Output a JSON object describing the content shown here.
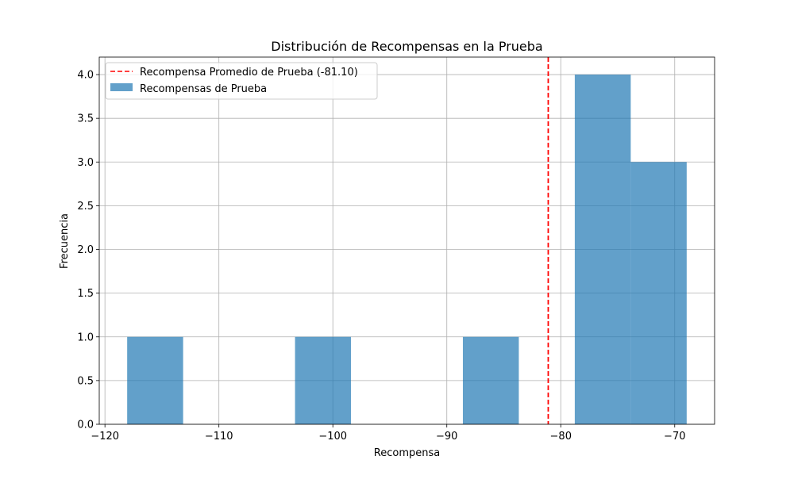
{
  "chart_data": {
    "type": "bar",
    "title": "Distribución de Recompensas en la Prueba",
    "xlabel": "Recompensa",
    "ylabel": "Frecuencia",
    "xlim": [
      -120.5,
      -66.5
    ],
    "ylim": [
      0,
      4.2
    ],
    "grid": true,
    "legend_position": "top-left",
    "x_ticks": [
      {
        "value": -120,
        "label": "−120"
      },
      {
        "value": -110,
        "label": "−110"
      },
      {
        "value": -100,
        "label": "−100"
      },
      {
        "value": -90,
        "label": "−90"
      },
      {
        "value": -80,
        "label": "−80"
      },
      {
        "value": -70,
        "label": "−70"
      }
    ],
    "y_ticks": [
      {
        "value": 0,
        "label": "0.0"
      },
      {
        "value": 0.5,
        "label": "0.5"
      },
      {
        "value": 1,
        "label": "1.0"
      },
      {
        "value": 1.5,
        "label": "1.5"
      },
      {
        "value": 2,
        "label": "2.0"
      },
      {
        "value": 2.5,
        "label": "2.5"
      },
      {
        "value": 3,
        "label": "3.0"
      },
      {
        "value": 3.5,
        "label": "3.5"
      },
      {
        "value": 4,
        "label": "4.0"
      }
    ],
    "series": [
      {
        "name": "Recompensas de Prueba",
        "kind": "histogram",
        "color": "#1f77b4",
        "opacity": 0.7,
        "bins": [
          {
            "start": -118.05,
            "end": -113.14,
            "count": 1
          },
          {
            "start": -113.14,
            "end": -108.23,
            "count": 0
          },
          {
            "start": -108.23,
            "end": -103.32,
            "count": 0
          },
          {
            "start": -103.32,
            "end": -98.41,
            "count": 1
          },
          {
            "start": -98.41,
            "end": -93.5,
            "count": 0
          },
          {
            "start": -93.5,
            "end": -88.59,
            "count": 0
          },
          {
            "start": -88.59,
            "end": -83.68,
            "count": 1
          },
          {
            "start": -83.68,
            "end": -78.77,
            "count": 0
          },
          {
            "start": -78.77,
            "end": -73.86,
            "count": 4
          },
          {
            "start": -73.86,
            "end": -68.95,
            "count": 3
          }
        ]
      },
      {
        "name": "Recompensa Promedio de Prueba (-81.10)",
        "kind": "vline",
        "color": "#ff0000",
        "style": "dashed",
        "value": -81.1
      }
    ]
  }
}
